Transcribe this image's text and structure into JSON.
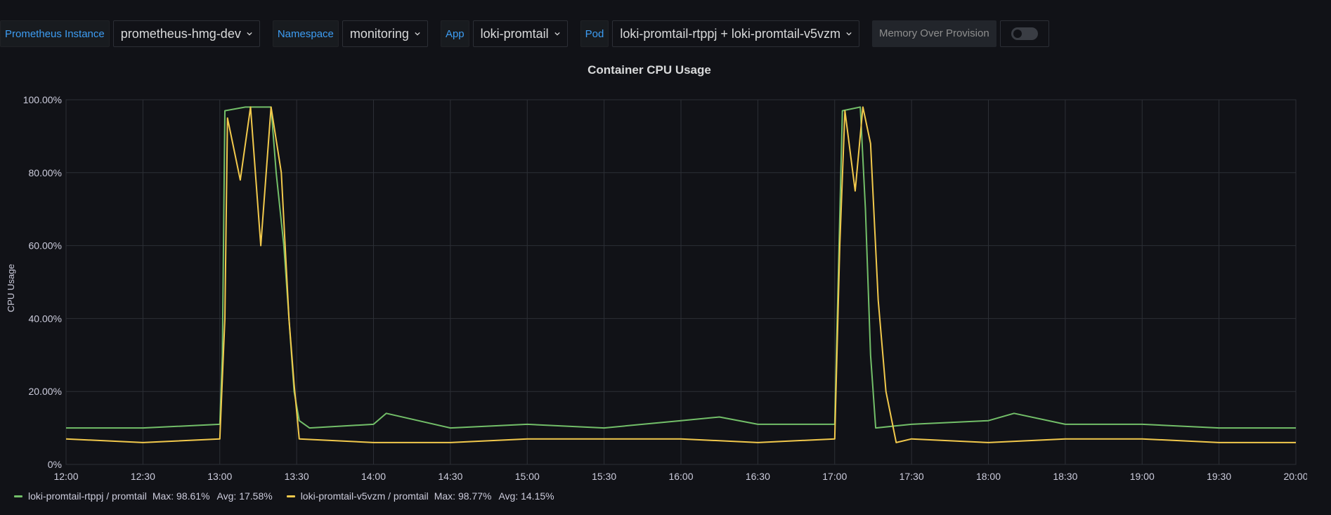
{
  "variables": [
    {
      "label": "Prometheus Instance",
      "value": "prometheus-hmg-dev"
    },
    {
      "label": "Namespace",
      "value": "monitoring"
    },
    {
      "label": "App",
      "value": "loki-promtail"
    },
    {
      "label": "Pod",
      "value": "loki-promtail-rtppj + loki-promtail-v5vzm"
    }
  ],
  "memory_over_provision": {
    "label": "Memory Over Provision",
    "enabled": false
  },
  "panel": {
    "title": "Container CPU Usage"
  },
  "chart_data": {
    "type": "line",
    "title": "Container CPU Usage",
    "ylabel": "CPU Usage",
    "ylim": [
      0,
      100
    ],
    "yticks": [
      "0%",
      "20.00%",
      "40.00%",
      "60.00%",
      "80.00%",
      "100.00%"
    ],
    "xticks": [
      "12:00",
      "12:30",
      "13:00",
      "13:30",
      "14:00",
      "14:30",
      "15:00",
      "15:30",
      "16:00",
      "16:30",
      "17:00",
      "17:30",
      "18:00",
      "18:30",
      "19:00",
      "19:30",
      "20:00"
    ],
    "x_range": [
      "12:00",
      "20:00"
    ],
    "grid": true,
    "series": [
      {
        "name": "loki-promtail-rtppj / promtail",
        "color": "#73bf69",
        "max": "Max: 98.61%",
        "avg": "Avg: 17.58%",
        "points": [
          [
            "12:00",
            10
          ],
          [
            "12:30",
            10
          ],
          [
            "13:00",
            11
          ],
          [
            "13:01",
            30
          ],
          [
            "13:02",
            97
          ],
          [
            "13:10",
            98
          ],
          [
            "13:20",
            98
          ],
          [
            "13:22",
            80
          ],
          [
            "13:25",
            60
          ],
          [
            "13:27",
            40
          ],
          [
            "13:29",
            20
          ],
          [
            "13:31",
            12
          ],
          [
            "13:35",
            10
          ],
          [
            "14:00",
            11
          ],
          [
            "14:05",
            14
          ],
          [
            "14:30",
            10
          ],
          [
            "15:00",
            11
          ],
          [
            "15:30",
            10
          ],
          [
            "16:00",
            12
          ],
          [
            "16:15",
            13
          ],
          [
            "16:30",
            11
          ],
          [
            "17:00",
            11
          ],
          [
            "17:01",
            40
          ],
          [
            "17:03",
            97
          ],
          [
            "17:10",
            98
          ],
          [
            "17:12",
            70
          ],
          [
            "17:14",
            30
          ],
          [
            "17:16",
            10
          ],
          [
            "17:30",
            11
          ],
          [
            "18:00",
            12
          ],
          [
            "18:10",
            14
          ],
          [
            "18:30",
            11
          ],
          [
            "19:00",
            11
          ],
          [
            "19:30",
            10
          ],
          [
            "20:00",
            10
          ]
        ]
      },
      {
        "name": "loki-promtail-v5vzm / promtail",
        "color": "#f2c94c",
        "max": "Max: 98.77%",
        "avg": "Avg: 14.15%",
        "points": [
          [
            "12:00",
            7
          ],
          [
            "12:30",
            6
          ],
          [
            "13:00",
            7
          ],
          [
            "13:02",
            40
          ],
          [
            "13:03",
            95
          ],
          [
            "13:08",
            78
          ],
          [
            "13:12",
            98
          ],
          [
            "13:16",
            60
          ],
          [
            "13:20",
            98
          ],
          [
            "13:24",
            80
          ],
          [
            "13:27",
            40
          ],
          [
            "13:29",
            22
          ],
          [
            "13:31",
            7
          ],
          [
            "14:00",
            6
          ],
          [
            "14:30",
            6
          ],
          [
            "15:00",
            7
          ],
          [
            "15:30",
            7
          ],
          [
            "16:00",
            7
          ],
          [
            "16:30",
            6
          ],
          [
            "17:00",
            7
          ],
          [
            "17:02",
            60
          ],
          [
            "17:04",
            97
          ],
          [
            "17:08",
            75
          ],
          [
            "17:11",
            98
          ],
          [
            "17:14",
            88
          ],
          [
            "17:17",
            45
          ],
          [
            "17:20",
            20
          ],
          [
            "17:24",
            6
          ],
          [
            "17:30",
            7
          ],
          [
            "18:00",
            6
          ],
          [
            "18:30",
            7
          ],
          [
            "19:00",
            7
          ],
          [
            "19:30",
            6
          ],
          [
            "20:00",
            6
          ]
        ]
      }
    ]
  }
}
